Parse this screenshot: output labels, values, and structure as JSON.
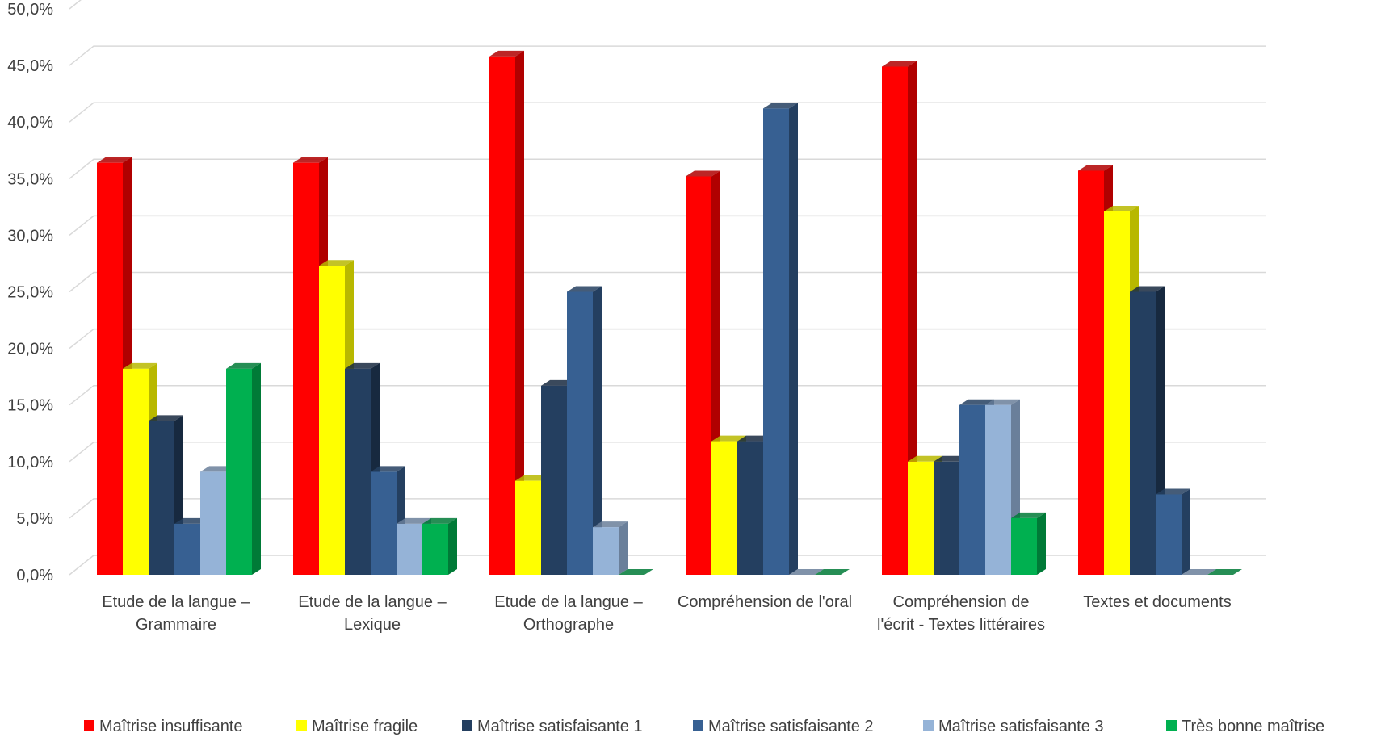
{
  "chart_data": {
    "type": "bar",
    "categories": [
      [
        "Etude de la langue –",
        "Grammaire"
      ],
      [
        "Etude de la langue –",
        "Lexique"
      ],
      [
        "Etude de la langue –",
        "Orthographe"
      ],
      [
        "Compréhension de l'oral"
      ],
      [
        "Compréhension de",
        "l'écrit - Textes littéraires"
      ],
      [
        "Textes et documents"
      ]
    ],
    "series": [
      {
        "name": "Maîtrise insuffisante",
        "color": "#FF0000",
        "side_color": "#B00000",
        "values": [
          36.4,
          36.4,
          45.8,
          35.2,
          44.9,
          35.7
        ]
      },
      {
        "name": "Maîtrise fragile",
        "color": "#FFFF00",
        "side_color": "#B8B800",
        "values": [
          18.2,
          27.3,
          8.3,
          11.8,
          10.0,
          32.1
        ]
      },
      {
        "name": "Maîtrise satisfaisante 1",
        "color": "#243F60",
        "side_color": "#17293F",
        "values": [
          13.6,
          18.2,
          16.7,
          11.8,
          10.0,
          25.0
        ]
      },
      {
        "name": "Maîtrise satisfaisante 2",
        "color": "#376092",
        "side_color": "#243F60",
        "values": [
          4.5,
          9.1,
          25.0,
          41.2,
          15.0,
          7.1
        ]
      },
      {
        "name": "Maîtrise satisfaisante 3",
        "color": "#95B3D7",
        "side_color": "#6A7F9A",
        "values": [
          9.1,
          4.5,
          4.2,
          0,
          15.0,
          0
        ]
      },
      {
        "name": "Très bonne maîtrise",
        "color": "#00B050",
        "side_color": "#007A37",
        "values": [
          18.2,
          4.5,
          0,
          0,
          5.0,
          0
        ]
      }
    ],
    "y_ticks": [
      "0,0%",
      "5,0%",
      "10,0%",
      "15,0%",
      "20,0%",
      "25,0%",
      "30,0%",
      "35,0%",
      "40,0%",
      "45,0%",
      "50,0%"
    ],
    "ylim": [
      0,
      50
    ],
    "grid": true,
    "legend_position": "bottom",
    "title": "",
    "xlabel": "",
    "ylabel": ""
  }
}
